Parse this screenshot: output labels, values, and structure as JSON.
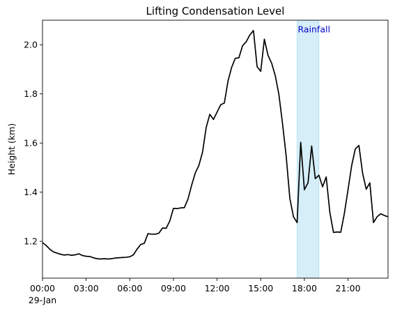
{
  "chart_data": {
    "type": "line",
    "title": "Lifting Condensation Level",
    "xlabel": "",
    "ylabel": "Height (km)",
    "x_unit": "hours since 29-Jan 00:00",
    "xlim": [
      0,
      23.75
    ],
    "ylim": [
      1.05,
      2.1
    ],
    "x_ticks": [
      {
        "value": 0,
        "label": "00:00",
        "sublabel": "29-Jan"
      },
      {
        "value": 3,
        "label": "03:00"
      },
      {
        "value": 6,
        "label": "06:00"
      },
      {
        "value": 9,
        "label": "09:00"
      },
      {
        "value": 12,
        "label": "12:00"
      },
      {
        "value": 15,
        "label": "15:00"
      },
      {
        "value": 18,
        "label": "18:00"
      },
      {
        "value": 21,
        "label": "21:00"
      }
    ],
    "y_ticks": [
      {
        "value": 1.2,
        "label": "1.2"
      },
      {
        "value": 1.4,
        "label": "1.4"
      },
      {
        "value": 1.6,
        "label": "1.6"
      },
      {
        "value": 1.8,
        "label": "1.8"
      },
      {
        "value": 2.0,
        "label": "2.0"
      }
    ],
    "grid": false,
    "span": {
      "x0": 17.5,
      "x1": 19.0,
      "color": "#87ceeb",
      "label": "Rainfall",
      "label_color": "#0000cc"
    },
    "series": [
      {
        "color": "#000000",
        "x": [
          0,
          0.25,
          0.5,
          0.75,
          1.0,
          1.25,
          1.5,
          1.75,
          2.0,
          2.25,
          2.5,
          2.75,
          3.0,
          3.25,
          3.5,
          3.75,
          4.0,
          4.25,
          4.5,
          4.75,
          5.0,
          5.25,
          5.5,
          5.75,
          6.0,
          6.25,
          6.5,
          6.75,
          7.0,
          7.25,
          7.5,
          7.75,
          8.0,
          8.25,
          8.5,
          8.75,
          9.0,
          9.25,
          9.5,
          9.75,
          10.0,
          10.25,
          10.5,
          10.75,
          11.0,
          11.25,
          11.5,
          11.75,
          12.0,
          12.25,
          12.5,
          12.75,
          13.0,
          13.25,
          13.5,
          13.75,
          14.0,
          14.25,
          14.5,
          14.75,
          15.0,
          15.25,
          15.5,
          15.75,
          16.0,
          16.25,
          16.5,
          16.75,
          17.0,
          17.25,
          17.5,
          17.75,
          18.0,
          18.25,
          18.5,
          18.75,
          19.0,
          19.25,
          19.5,
          19.75,
          20.0,
          20.25,
          20.5,
          20.75,
          21.0,
          21.25,
          21.5,
          21.75,
          22.0,
          22.25,
          22.5,
          22.75,
          23.0,
          23.25,
          23.5,
          23.75
        ],
        "y": [
          1.195,
          1.183,
          1.168,
          1.157,
          1.152,
          1.147,
          1.144,
          1.146,
          1.143,
          1.145,
          1.149,
          1.142,
          1.139,
          1.138,
          1.133,
          1.129,
          1.128,
          1.129,
          1.128,
          1.129,
          1.132,
          1.133,
          1.134,
          1.135,
          1.137,
          1.145,
          1.168,
          1.187,
          1.192,
          1.231,
          1.229,
          1.229,
          1.233,
          1.254,
          1.253,
          1.283,
          1.334,
          1.333,
          1.336,
          1.337,
          1.372,
          1.428,
          1.478,
          1.509,
          1.563,
          1.663,
          1.717,
          1.696,
          1.726,
          1.756,
          1.763,
          1.852,
          1.908,
          1.945,
          1.947,
          1.996,
          2.012,
          2.04,
          2.058,
          1.911,
          1.892,
          2.023,
          1.957,
          1.925,
          1.874,
          1.797,
          1.678,
          1.546,
          1.375,
          1.3,
          1.276,
          1.603,
          1.41,
          1.438,
          1.588,
          1.455,
          1.469,
          1.422,
          1.462,
          1.318,
          1.236,
          1.238,
          1.237,
          1.314,
          1.41,
          1.508,
          1.576,
          1.59,
          1.478,
          1.412,
          1.438,
          1.276,
          1.3,
          1.312,
          1.305,
          1.3
        ]
      }
    ]
  }
}
